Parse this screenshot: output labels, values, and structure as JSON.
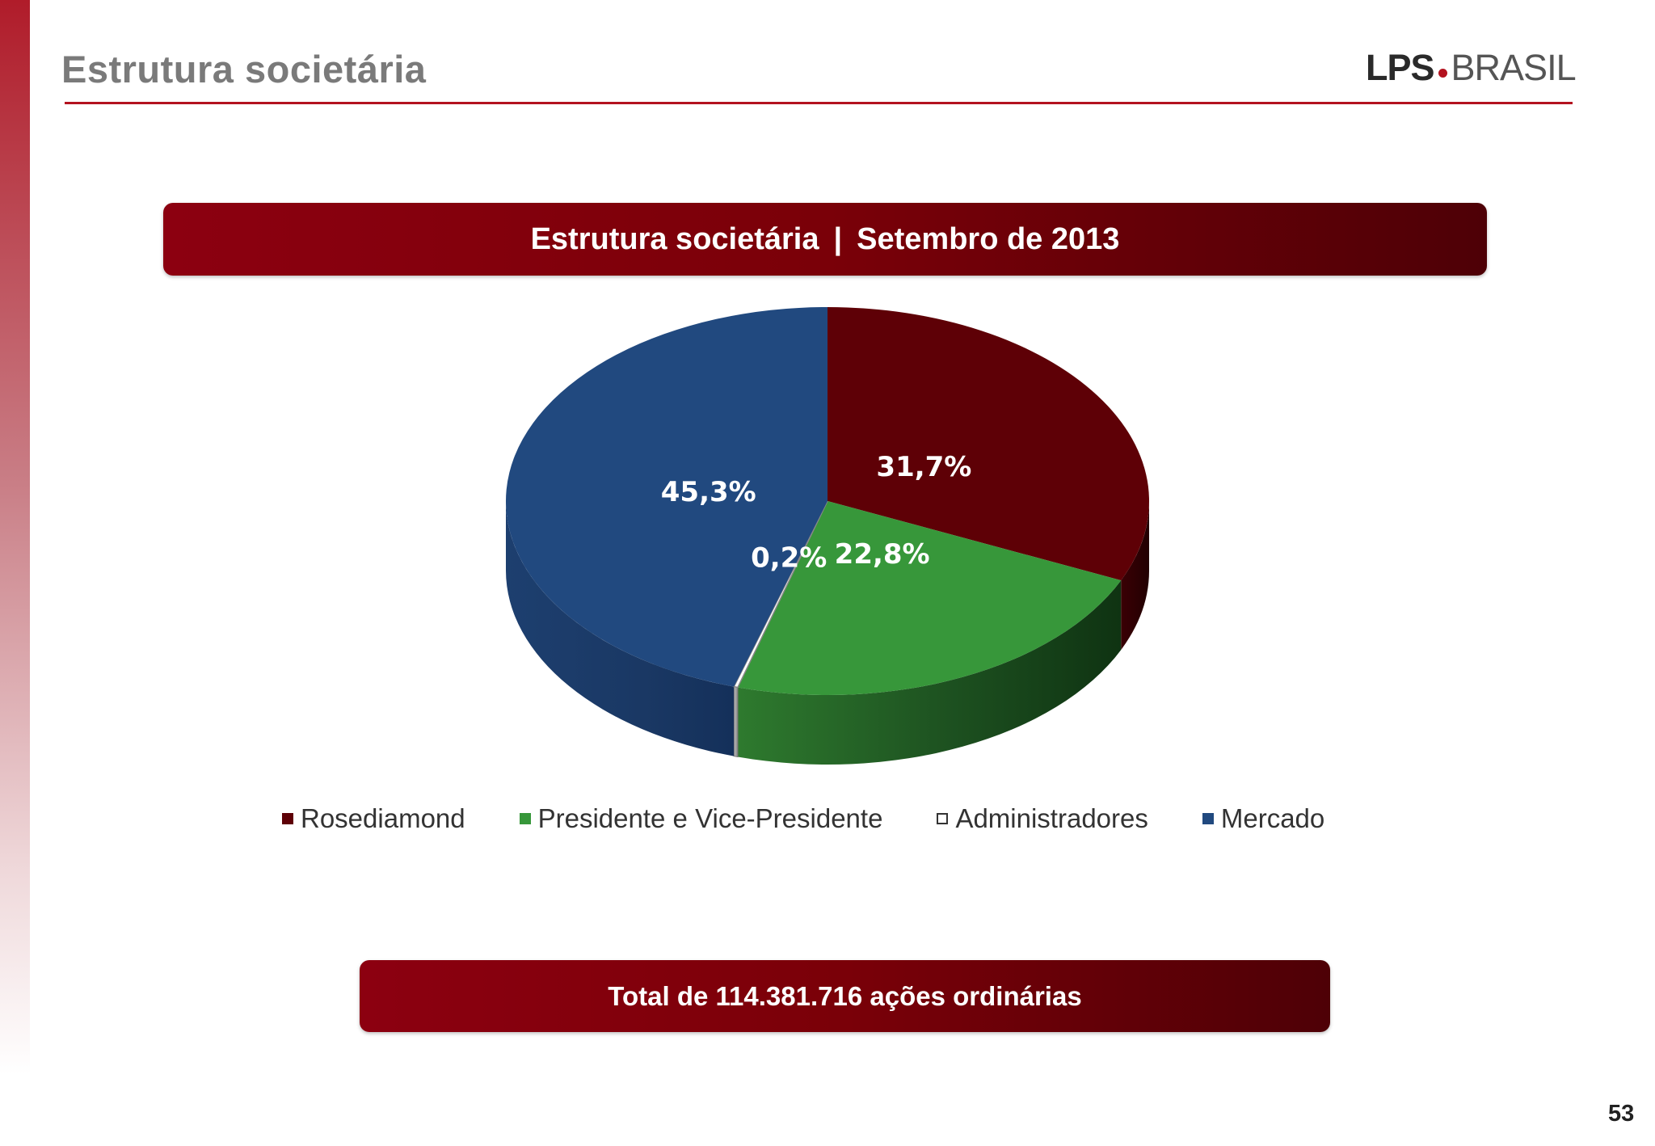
{
  "header": {
    "title": "Estrutura societária",
    "logo": {
      "lps": "LPS",
      "brasil": "BRASIL"
    }
  },
  "banner_top": {
    "left": "Estrutura societária",
    "separator": "|",
    "right": "Setembro de 2013"
  },
  "banner_bottom": {
    "text": "Total de 114.381.716 ações ordinárias"
  },
  "page_number": "53",
  "colors": {
    "accent": "#b3121f",
    "banner": "#7a0008",
    "rosediamond": "#5e0006",
    "presidente": "#37973a",
    "administradores": "#ffffff",
    "mercado": "#21497f"
  },
  "chart_data": {
    "type": "pie",
    "style": "3d",
    "title": "",
    "categories": [
      "Rosediamond",
      "Presidente e Vice-Presidente",
      "Administradores",
      "Mercado"
    ],
    "values": [
      31.7,
      22.8,
      0.2,
      45.3
    ],
    "value_labels": [
      "31,7%",
      "22,8%",
      "0,2%",
      "45,3%"
    ],
    "unit": "%",
    "legend_position": "bottom"
  }
}
